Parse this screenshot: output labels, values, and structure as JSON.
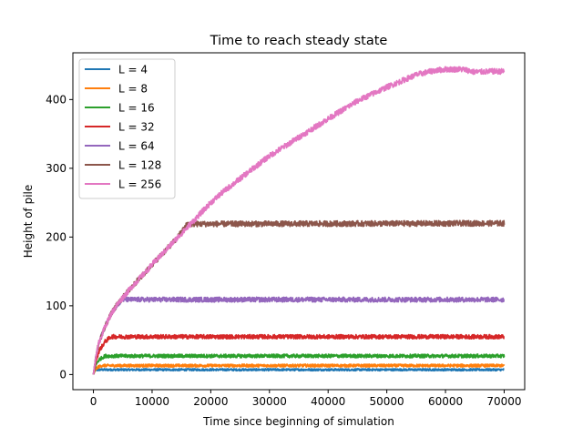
{
  "chart_data": {
    "type": "line",
    "title": "Time to reach steady state",
    "xlabel": "Time since beginning of simulation",
    "ylabel": "Height of pile",
    "xlim": [
      -3500,
      73500
    ],
    "ylim": [
      -22,
      468
    ],
    "xticks": [
      0,
      10000,
      20000,
      30000,
      40000,
      50000,
      60000,
      70000
    ],
    "xtick_labels": [
      "0",
      "10000",
      "20000",
      "30000",
      "40000",
      "50000",
      "60000",
      "70000"
    ],
    "yticks": [
      0,
      100,
      200,
      300,
      400
    ],
    "ytick_labels": [
      "0",
      "100",
      "200",
      "300",
      "400"
    ],
    "grid": false,
    "legend_position": "upper left",
    "series": [
      {
        "name": "L = 4",
        "color": "#1f77b4",
        "x": [
          0,
          300,
          1000,
          70000
        ],
        "y": [
          0,
          6,
          7,
          7
        ],
        "noise": 1.5
      },
      {
        "name": "L = 8",
        "color": "#ff7f0e",
        "x": [
          0,
          400,
          800,
          1500,
          70000
        ],
        "y": [
          0,
          8,
          11,
          13,
          13
        ],
        "noise": 2.0
      },
      {
        "name": "L = 16",
        "color": "#2ca02c",
        "x": [
          0,
          400,
          1000,
          2000,
          70000
        ],
        "y": [
          0,
          14,
          22,
          27,
          27
        ],
        "noise": 2.5
      },
      {
        "name": "L = 32",
        "color": "#d62728",
        "x": [
          0,
          500,
          1000,
          2000,
          3000,
          70000
        ],
        "y": [
          0,
          22,
          35,
          48,
          55,
          55
        ],
        "noise": 3.0
      },
      {
        "name": "L = 64",
        "color": "#9467bd",
        "x": [
          0,
          500,
          1000,
          2000,
          3000,
          4000,
          5000,
          70000
        ],
        "y": [
          0,
          30,
          48,
          70,
          88,
          101,
          109,
          109
        ],
        "noise": 3.5
      },
      {
        "name": "L = 128",
        "color": "#8c564b",
        "x": [
          0,
          500,
          1000,
          2000,
          3000,
          4000,
          5000,
          6000,
          7000,
          8000,
          9000,
          10000,
          11000,
          12000,
          13000,
          14000,
          15000,
          16000,
          70000
        ],
        "y": [
          0,
          30,
          48,
          70,
          88,
          101,
          112,
          122,
          132,
          141,
          150,
          160,
          169,
          178,
          187,
          196,
          207,
          219,
          220
        ],
        "noise": 4.0
      },
      {
        "name": "L = 256",
        "color": "#e377c2",
        "x": [
          0,
          500,
          1000,
          2000,
          3000,
          4000,
          5000,
          6000,
          7000,
          8000,
          9000,
          10000,
          12000,
          14000,
          16000,
          18000,
          20000,
          22000,
          25000,
          28000,
          30000,
          35000,
          40000,
          45000,
          50000,
          55000,
          58000,
          60000,
          63000,
          65000,
          68000,
          70000
        ],
        "y": [
          0,
          30,
          48,
          70,
          88,
          101,
          112,
          122,
          132,
          141,
          150,
          160,
          178,
          196,
          214,
          232,
          250,
          265,
          285,
          305,
          318,
          345,
          372,
          398,
          418,
          436,
          442,
          444,
          444,
          440,
          441,
          441
        ],
        "noise": 4.0
      }
    ]
  }
}
